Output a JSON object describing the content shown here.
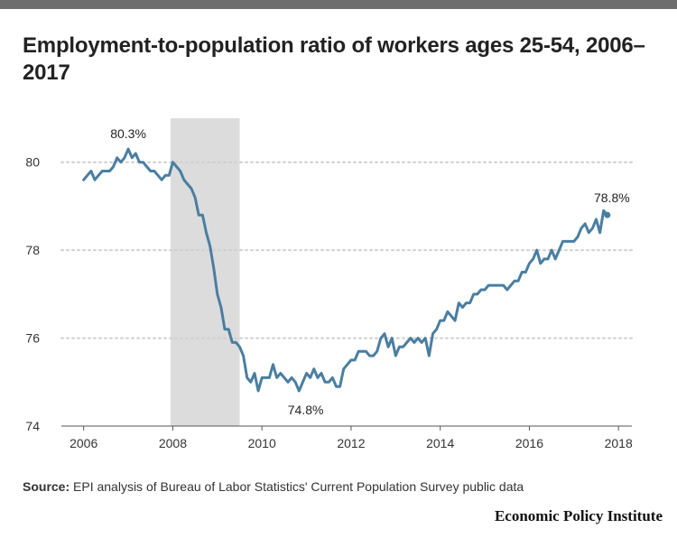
{
  "header": {
    "title": "Employment-to-population ratio of workers ages 25-54, 2006–2017"
  },
  "footer": {
    "source_label": "Source:",
    "source_text": "EPI analysis of Bureau of Labor Statistics' Current Population Survey public data",
    "publisher": "Economic Policy Institute"
  },
  "colors": {
    "line": "#4a7ea1",
    "recession_band": "#dcdcdc",
    "grid": "#cfcfcf",
    "top_rule": "#6e6e6e"
  },
  "chart_data": {
    "type": "line",
    "title": "Employment-to-population ratio of workers ages 25-54, 2006–2017",
    "xlabel": "",
    "ylabel": "",
    "xlim": [
      2005.5,
      2018.3
    ],
    "ylim": [
      74,
      81
    ],
    "x_ticks": [
      2006,
      2008,
      2010,
      2012,
      2014,
      2016,
      2018
    ],
    "x_tick_labels": [
      "2006",
      "2008",
      "2010",
      "2012",
      "2014",
      "2016",
      "2018"
    ],
    "y_ticks": [
      74,
      76,
      78,
      80
    ],
    "y_tick_labels": [
      "74",
      "76",
      "78",
      "80"
    ],
    "grid": "horizontal dotted",
    "legend": "none",
    "shaded_region": {
      "start": 2007.95,
      "end": 2009.5,
      "meaning": "recession"
    },
    "annotations": [
      {
        "text": "80.3%",
        "x": 2007.0,
        "y": 80.3
      },
      {
        "text": "74.8%",
        "x": 2010.9,
        "y": 74.8
      },
      {
        "text": "78.8%",
        "x": 2017.75,
        "y": 78.8
      }
    ],
    "series": [
      {
        "start_year": 2006,
        "step_months": 1,
        "values": [
          79.6,
          79.7,
          79.8,
          79.6,
          79.7,
          79.8,
          79.8,
          79.8,
          79.9,
          80.1,
          80.0,
          80.1,
          80.3,
          80.1,
          80.2,
          80.0,
          80.0,
          79.9,
          79.8,
          79.8,
          79.7,
          79.6,
          79.7,
          79.7,
          80.0,
          79.9,
          79.8,
          79.6,
          79.5,
          79.4,
          79.2,
          78.8,
          78.8,
          78.4,
          78.1,
          77.6,
          77.0,
          76.7,
          76.2,
          76.2,
          75.9,
          75.9,
          75.8,
          75.6,
          75.1,
          75.0,
          75.2,
          74.8,
          75.1,
          75.1,
          75.1,
          75.4,
          75.1,
          75.2,
          75.1,
          75.0,
          75.1,
          75.0,
          74.8,
          75.0,
          75.2,
          75.1,
          75.3,
          75.1,
          75.2,
          75.0,
          75.0,
          75.1,
          74.9,
          74.9,
          75.3,
          75.4,
          75.5,
          75.5,
          75.7,
          75.7,
          75.7,
          75.6,
          75.6,
          75.7,
          76.0,
          76.1,
          75.8,
          76.0,
          75.6,
          75.8,
          75.8,
          75.9,
          76.0,
          75.9,
          76.0,
          75.9,
          76.0,
          75.6,
          76.1,
          76.2,
          76.4,
          76.4,
          76.6,
          76.5,
          76.4,
          76.8,
          76.7,
          76.8,
          76.8,
          77.0,
          77.0,
          77.1,
          77.1,
          77.2,
          77.2,
          77.2,
          77.2,
          77.2,
          77.1,
          77.2,
          77.3,
          77.3,
          77.5,
          77.5,
          77.7,
          77.8,
          78.0,
          77.7,
          77.8,
          77.8,
          78.0,
          77.8,
          78.0,
          78.2,
          78.2,
          78.2,
          78.2,
          78.3,
          78.5,
          78.6,
          78.4,
          78.5,
          78.7,
          78.4,
          78.9,
          78.8
        ]
      }
    ]
  }
}
